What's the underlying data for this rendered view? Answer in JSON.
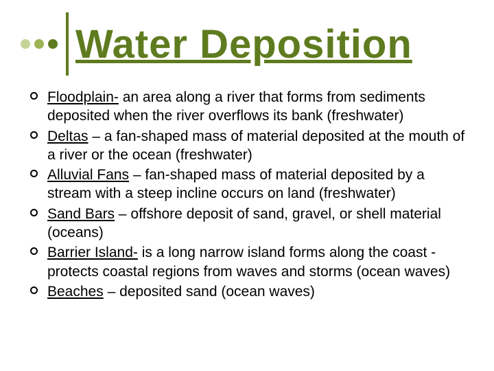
{
  "title": {
    "text": "Water Deposition",
    "color": "#5f7b1f",
    "fontsize": 58
  },
  "dots": {
    "colors": [
      "#c6d49a",
      "#9db354",
      "#5f7b1f"
    ]
  },
  "divider_color": "#5f7b1f",
  "items": [
    {
      "term": "Floodplain-",
      "rest": " an area along a river that forms from sediments deposited when the river overflows its bank (freshwater)"
    },
    {
      "term": "Deltas",
      "rest": " – a fan-shaped mass of material deposited at the mouth of a river or the ocean (freshwater)"
    },
    {
      "term": "Alluvial Fans",
      "rest": " – fan-shaped mass of material deposited by a stream with a steep incline occurs on land (freshwater)"
    },
    {
      "term": "Sand Bars",
      "rest": " – offshore deposit of sand, gravel, or shell material (oceans)"
    },
    {
      "term": "Barrier Island-",
      "rest": " is a long narrow island forms along the coast - protects coastal regions from waves and storms (ocean waves)"
    },
    {
      "term": "Beaches",
      "rest": " – deposited sand (ocean waves)"
    }
  ],
  "body_fontsize": 21,
  "background_color": "#ffffff"
}
